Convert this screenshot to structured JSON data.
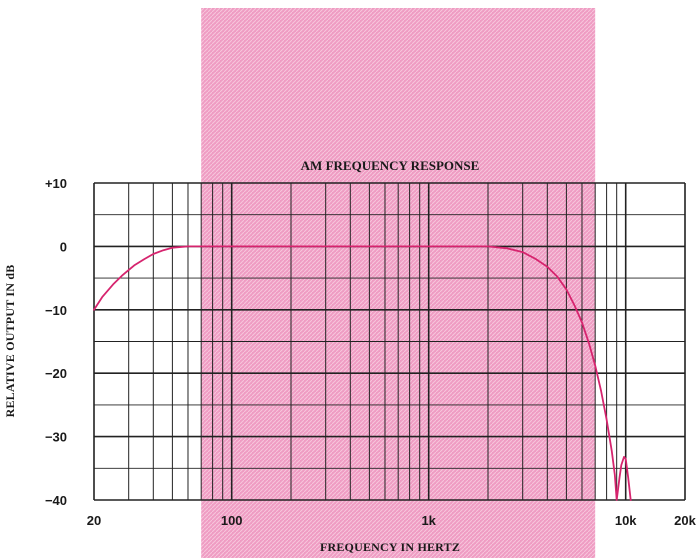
{
  "chart_data": {
    "type": "line",
    "title": "AM FREQUENCY RESPONSE",
    "xlabel": "FREQUENCY IN HERTZ",
    "ylabel": "RELATIVE OUTPUT IN dB",
    "x_scale": "log",
    "xlim": [
      20,
      20000
    ],
    "ylim": [
      -40,
      10
    ],
    "y_ticks": [
      10,
      0,
      -10,
      -20,
      -30,
      -40
    ],
    "y_tick_labels": [
      "+10",
      "0",
      "−10",
      "−20",
      "−30",
      "−40"
    ],
    "x_ticks": [
      20,
      100,
      1000,
      10000,
      20000
    ],
    "x_tick_labels": [
      "20",
      "100",
      "1k",
      "10k",
      "20k"
    ],
    "grid": true,
    "shaded_band_hz": [
      70,
      7000
    ],
    "colors": {
      "curve": "#d6246e",
      "band": "#ef9cc3",
      "grid": "#222222"
    },
    "series": [
      {
        "x": [
          20,
          22,
          25,
          28,
          32,
          36,
          40,
          45,
          50,
          60,
          100,
          300,
          1000,
          2000,
          2500,
          3000,
          3500,
          4000,
          4500,
          5000,
          5500,
          6000,
          6500,
          7000,
          7500,
          8000,
          8500,
          8800,
          9000,
          9300,
          9500,
          9800,
          10000,
          10300,
          10600
        ],
        "y": [
          -10,
          -8,
          -6,
          -4.5,
          -3,
          -2,
          -1.2,
          -0.6,
          -0.2,
          0,
          0,
          0,
          0,
          0,
          -0.3,
          -0.9,
          -2,
          -3.2,
          -4.8,
          -6.8,
          -9.3,
          -12,
          -15.2,
          -18.8,
          -22.8,
          -27.3,
          -32.3,
          -36,
          -40,
          -36.5,
          -34.5,
          -33.2,
          -33.5,
          -36.5,
          -40
        ]
      }
    ]
  }
}
